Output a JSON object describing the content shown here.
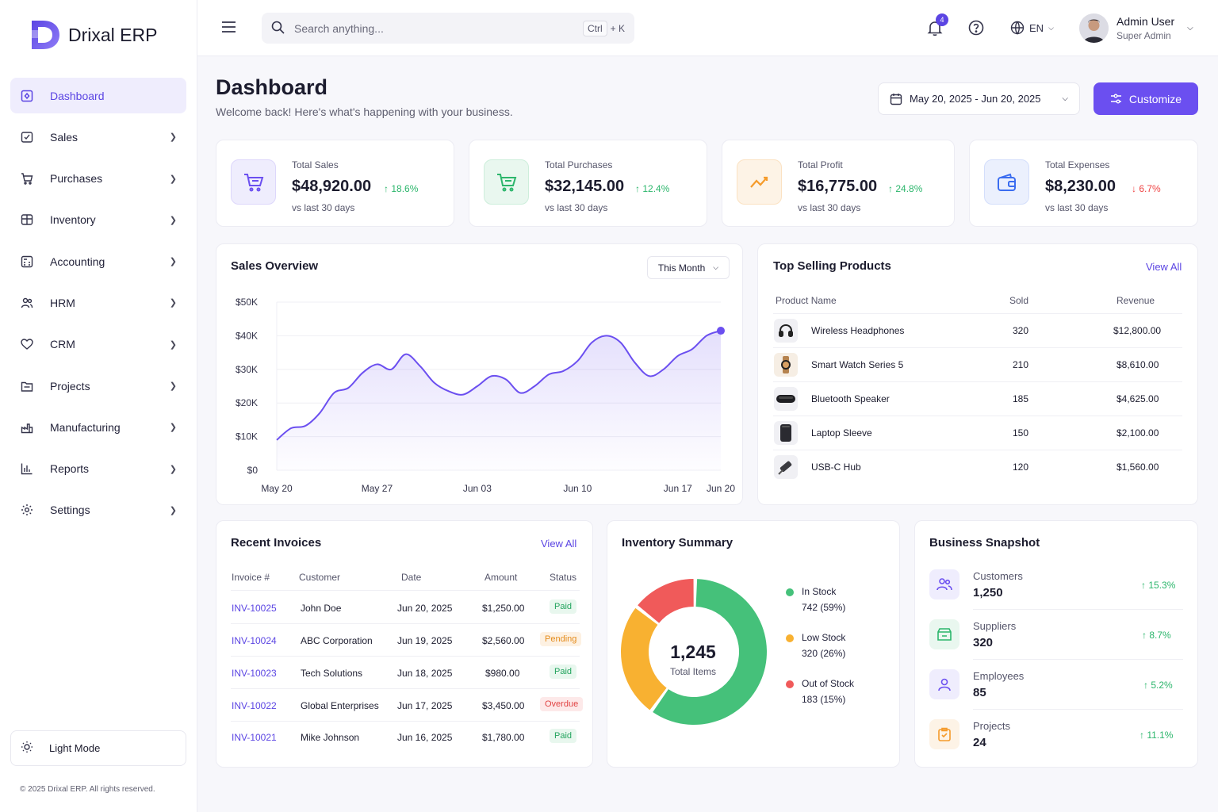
{
  "app": {
    "name": "Drixal ERP"
  },
  "sidebar": {
    "items": [
      {
        "label": "Dashboard",
        "icon": "dashboard-icon",
        "active": true
      },
      {
        "label": "Sales",
        "icon": "sales-icon"
      },
      {
        "label": "Purchases",
        "icon": "cart-icon"
      },
      {
        "label": "Inventory",
        "icon": "box-icon"
      },
      {
        "label": "Accounting",
        "icon": "calculator-icon"
      },
      {
        "label": "HRM",
        "icon": "users-icon"
      },
      {
        "label": "CRM",
        "icon": "heart-icon"
      },
      {
        "label": "Projects",
        "icon": "folder-icon"
      },
      {
        "label": "Manufacturing",
        "icon": "factory-icon"
      },
      {
        "label": "Reports",
        "icon": "chart-icon"
      },
      {
        "label": "Settings",
        "icon": "gear-icon"
      }
    ],
    "light_mode": "Light Mode",
    "copyright": "© 2025 Drixal ERP. All rights reserved."
  },
  "topbar": {
    "search_placeholder": "Search anything...",
    "shortcut_ctrl": "Ctrl",
    "shortcut_plus": "+ K",
    "notifications": "4",
    "language": "EN",
    "user_name": "Admin User",
    "user_role": "Super Admin"
  },
  "page": {
    "title": "Dashboard",
    "subtitle": "Welcome back! Here's what's happening with your business.",
    "date_range": "May 20, 2025 - Jun 20, 2025",
    "customize": "Customize"
  },
  "stats": [
    {
      "label": "Total Sales",
      "value": "$48,920.00",
      "change": "18.6%",
      "direction": "up",
      "sub": "vs last 30 days",
      "color": "#6b4ff0"
    },
    {
      "label": "Total Purchases",
      "value": "$32,145.00",
      "change": "12.4%",
      "direction": "up",
      "sub": "vs last 30 days",
      "color": "#2cb66c"
    },
    {
      "label": "Total Profit",
      "value": "$16,775.00",
      "change": "24.8%",
      "direction": "up",
      "sub": "vs last 30 days",
      "color": "#f59b2b"
    },
    {
      "label": "Total Expenses",
      "value": "$8,230.00",
      "change": "6.7%",
      "direction": "down",
      "sub": "vs last 30 days",
      "color": "#3b6df0"
    }
  ],
  "sales_overview": {
    "title": "Sales Overview",
    "period": "This Month"
  },
  "chart_data": {
    "type": "line",
    "x": [
      "May 20",
      "May 21",
      "May 22",
      "May 23",
      "May 24",
      "May 25",
      "May 26",
      "May 27",
      "May 28",
      "May 29",
      "May 30",
      "May 31",
      "Jun 01",
      "Jun 02",
      "Jun 03",
      "Jun 04",
      "Jun 05",
      "Jun 06",
      "Jun 07",
      "Jun 08",
      "Jun 09",
      "Jun 10",
      "Jun 11",
      "Jun 12",
      "Jun 13",
      "Jun 14",
      "Jun 15",
      "Jun 16",
      "Jun 17",
      "Jun 18",
      "Jun 19",
      "Jun 20"
    ],
    "values": [
      9000,
      12500,
      13200,
      17000,
      23000,
      24500,
      29000,
      31500,
      30000,
      34500,
      31000,
      26000,
      23500,
      22500,
      25000,
      28000,
      27000,
      23000,
      25000,
      28500,
      29500,
      32500,
      38000,
      40000,
      38000,
      32000,
      28000,
      30000,
      34000,
      36000,
      40000,
      41500
    ],
    "xticks": [
      "May 20",
      "May 27",
      "Jun 03",
      "Jun 10",
      "Jun 17",
      "Jun 20"
    ],
    "yticks": [
      "$0",
      "$10K",
      "$20K",
      "$30K",
      "$40K",
      "$50K"
    ],
    "ylim": [
      0,
      50000
    ],
    "grid": true,
    "color": "#6b4ff0"
  },
  "top_products": {
    "title": "Top Selling Products",
    "view_all": "View All",
    "headers": [
      "Product Name",
      "Sold",
      "Revenue"
    ],
    "rows": [
      {
        "name": "Wireless Headphones",
        "sold": "320",
        "revenue": "$12,800.00",
        "icon": "headphones-icon"
      },
      {
        "name": "Smart Watch Series 5",
        "sold": "210",
        "revenue": "$8,610.00",
        "icon": "watch-icon"
      },
      {
        "name": "Bluetooth Speaker",
        "sold": "185",
        "revenue": "$4,625.00",
        "icon": "speaker-icon"
      },
      {
        "name": "Laptop Sleeve",
        "sold": "150",
        "revenue": "$2,100.00",
        "icon": "sleeve-icon"
      },
      {
        "name": "USB-C Hub",
        "sold": "120",
        "revenue": "$1,560.00",
        "icon": "usb-hub-icon"
      }
    ]
  },
  "invoices": {
    "title": "Recent Invoices",
    "view_all": "View All",
    "headers": [
      "Invoice #",
      "Customer",
      "Date",
      "Amount",
      "Status"
    ],
    "rows": [
      {
        "id": "INV-10025",
        "customer": "John Doe",
        "date": "Jun 20, 2025",
        "amount": "$1,250.00",
        "status": "Paid"
      },
      {
        "id": "INV-10024",
        "customer": "ABC Corporation",
        "date": "Jun 19, 2025",
        "amount": "$2,560.00",
        "status": "Pending"
      },
      {
        "id": "INV-10023",
        "customer": "Tech Solutions",
        "date": "Jun 18, 2025",
        "amount": "$980.00",
        "status": "Paid"
      },
      {
        "id": "INV-10022",
        "customer": "Global Enterprises",
        "date": "Jun 17, 2025",
        "amount": "$3,450.00",
        "status": "Overdue"
      },
      {
        "id": "INV-10021",
        "customer": "Mike Johnson",
        "date": "Jun 16, 2025",
        "amount": "$1,780.00",
        "status": "Paid"
      }
    ]
  },
  "inventory": {
    "title": "Inventory Summary",
    "total": "1,245",
    "total_label": "Total Items",
    "segments": [
      {
        "label": "In Stock",
        "value": "742 (59%)",
        "count": 742,
        "color": "#45c17a"
      },
      {
        "label": "Low Stock",
        "value": "320 (26%)",
        "count": 320,
        "color": "#f8b131"
      },
      {
        "label": "Out of Stock",
        "value": "183 (15%)",
        "count": 183,
        "color": "#f05a5a"
      }
    ]
  },
  "snapshot": {
    "title": "Business Snapshot",
    "items": [
      {
        "label": "Customers",
        "value": "1,250",
        "change": "15.3%",
        "icon": "customers-icon",
        "color": "#6b4ff0"
      },
      {
        "label": "Suppliers",
        "value": "320",
        "change": "8.7%",
        "icon": "suppliers-icon",
        "color": "#2cb66c"
      },
      {
        "label": "Employees",
        "value": "85",
        "change": "5.2%",
        "icon": "employees-icon",
        "color": "#6b4ff0"
      },
      {
        "label": "Projects",
        "value": "24",
        "change": "11.1%",
        "icon": "projects-icon",
        "color": "#f59b2b"
      }
    ]
  }
}
